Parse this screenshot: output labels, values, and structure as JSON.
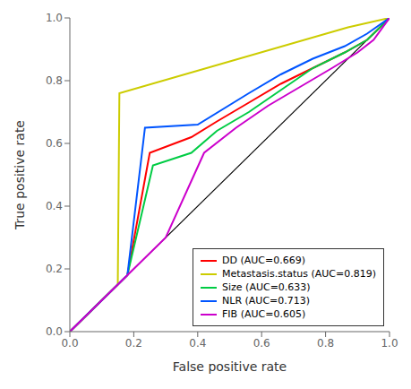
{
  "chart_data": {
    "type": "line",
    "xlabel": "False positive rate",
    "ylabel": "True positive rate",
    "xlim": [
      0.0,
      1.0
    ],
    "ylim": [
      0.0,
      1.0
    ],
    "xticks": [
      {
        "value": 0.0,
        "label": "0.0"
      },
      0.2,
      0.4,
      0.6,
      0.8,
      {
        "value": 1.0,
        "label": "1.0"
      }
    ],
    "yticks": [
      {
        "value": 0.0,
        "label": "0.0"
      },
      0.2,
      0.4,
      0.6,
      0.8,
      {
        "value": 1.0,
        "label": "1.0"
      }
    ],
    "grid": false,
    "legend": "lower right",
    "diagonal": {
      "x": [
        0,
        1
      ],
      "y": [
        0,
        1
      ],
      "color": "black"
    },
    "series": [
      {
        "name": "DD (AUC=0.669)",
        "color": "#FF0000",
        "x": [
          0.0,
          0.18,
          0.25,
          0.38,
          0.46,
          0.56,
          0.66,
          0.76,
          0.86,
          0.93,
          1.0
        ],
        "values": [
          0.0,
          0.18,
          0.57,
          0.62,
          0.67,
          0.73,
          0.79,
          0.84,
          0.89,
          0.93,
          1.0
        ]
      },
      {
        "name": "Metastasis.status (AUC=0.819)",
        "color": "#CCCC00",
        "x": [
          0.0,
          0.15,
          0.155,
          0.87,
          1.0
        ],
        "values": [
          0.0,
          0.15,
          0.76,
          0.97,
          1.0
        ]
      },
      {
        "name": "Size (AUC=0.633)",
        "color": "#00CC44",
        "x": [
          0.0,
          0.18,
          0.26,
          0.38,
          0.46,
          0.56,
          0.66,
          0.76,
          0.86,
          0.93,
          1.0
        ],
        "values": [
          0.0,
          0.18,
          0.53,
          0.57,
          0.64,
          0.7,
          0.77,
          0.84,
          0.89,
          0.93,
          1.0
        ]
      },
      {
        "name": "NLR (AUC=0.713)",
        "color": "#0055FF",
        "x": [
          0.0,
          0.18,
          0.235,
          0.4,
          0.56,
          0.66,
          0.76,
          0.86,
          0.93,
          1.0
        ],
        "values": [
          0.0,
          0.18,
          0.65,
          0.66,
          0.76,
          0.82,
          0.87,
          0.91,
          0.95,
          1.0
        ]
      },
      {
        "name": "FIB (AUC=0.605)",
        "color": "#CC00CC",
        "x": [
          0.0,
          0.18,
          0.3,
          0.42,
          0.52,
          0.62,
          0.72,
          0.82,
          0.9,
          0.95,
          1.0
        ],
        "values": [
          0.0,
          0.18,
          0.3,
          0.57,
          0.65,
          0.72,
          0.78,
          0.84,
          0.89,
          0.93,
          1.0
        ]
      }
    ]
  }
}
